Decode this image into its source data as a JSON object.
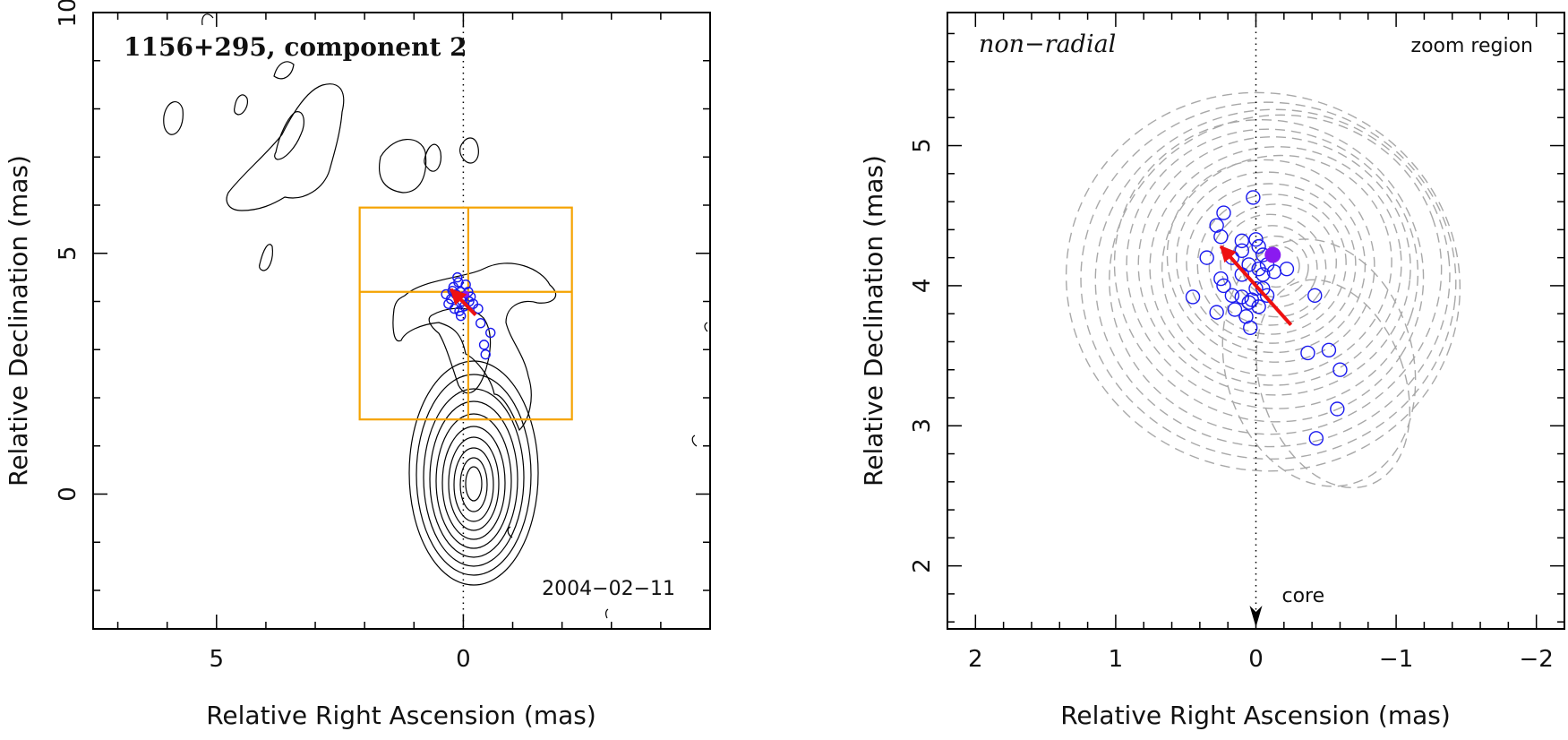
{
  "chart_data": [
    {
      "type": "scatter",
      "panel": "left",
      "title": "1156+295, component 2",
      "date": "2004−02−11",
      "xlabel": "Relative Right Ascension (mas)",
      "ylabel": "Relative Declination (mas)",
      "xlim": [
        7.5,
        -5.0
      ],
      "ylim": [
        -2.8,
        10.0
      ],
      "xticks": [
        5,
        0
      ],
      "xtick_labels": [
        "5",
        "0"
      ],
      "yticks": [
        0,
        5,
        10
      ],
      "ytick_labels": [
        "0",
        "5",
        "10"
      ],
      "zoom_box": {
        "ra": [
          2.1,
          -2.2
        ],
        "dec": [
          1.55,
          5.95
        ]
      },
      "crosshair": {
        "ra": -0.1,
        "dec": 4.2
      },
      "component_points": [
        [
          0.25,
          4.05
        ],
        [
          0.2,
          4.3
        ],
        [
          0.15,
          4.15
        ],
        [
          0.1,
          4.4
        ],
        [
          0.05,
          4.2
        ],
        [
          0.0,
          4.1
        ],
        [
          -0.05,
          4.35
        ],
        [
          -0.1,
          4.2
        ],
        [
          0.3,
          3.95
        ],
        [
          0.18,
          3.85
        ],
        [
          0.08,
          3.8
        ],
        [
          -0.02,
          3.9
        ],
        [
          -0.12,
          4.0
        ],
        [
          -0.2,
          3.95
        ],
        [
          0.12,
          4.5
        ],
        [
          0.02,
          4.0
        ],
        [
          0.22,
          4.22
        ],
        [
          -0.15,
          4.1
        ],
        [
          0.35,
          4.15
        ],
        [
          0.05,
          3.7
        ],
        [
          -0.3,
          3.85
        ],
        [
          -0.35,
          3.55
        ],
        [
          -0.55,
          3.35
        ],
        [
          -0.42,
          3.1
        ],
        [
          -0.45,
          2.9
        ]
      ],
      "motion_arrow": {
        "from_ra": -0.25,
        "from_dec": 3.72,
        "to_ra": 0.25,
        "to_dec": 4.25
      }
    },
    {
      "type": "scatter",
      "panel": "right",
      "label": "non−radial",
      "region_label": "zoom region",
      "core_label": "core",
      "xlabel": "Relative Right Ascension (mas)",
      "ylabel": "Relative Declination (mas)",
      "xlim": [
        2.2,
        -2.2
      ],
      "ylim": [
        1.55,
        5.95
      ],
      "xticks": [
        2,
        1,
        0,
        -1,
        -2
      ],
      "xtick_labels": [
        "2",
        "1",
        "0",
        "−1",
        "−2"
      ],
      "yticks": [
        2,
        3,
        4,
        5
      ],
      "ytick_labels": [
        "2",
        "3",
        "4",
        "5"
      ],
      "component_points": [
        [
          0.02,
          4.63
        ],
        [
          0.28,
          4.43
        ],
        [
          0.23,
          4.52
        ],
        [
          0.1,
          4.32
        ],
        [
          0.25,
          4.35
        ],
        [
          0.0,
          4.33
        ],
        [
          -0.02,
          4.28
        ],
        [
          0.17,
          4.2
        ],
        [
          0.35,
          4.2
        ],
        [
          0.1,
          4.25
        ],
        [
          -0.05,
          4.22
        ],
        [
          0.05,
          4.15
        ],
        [
          -0.02,
          4.12
        ],
        [
          -0.08,
          4.15
        ],
        [
          0.25,
          4.05
        ],
        [
          0.1,
          4.08
        ],
        [
          -0.05,
          4.08
        ],
        [
          -0.13,
          4.1
        ],
        [
          -0.22,
          4.12
        ],
        [
          0.23,
          4.0
        ],
        [
          0.0,
          3.98
        ],
        [
          -0.05,
          3.98
        ],
        [
          0.45,
          3.92
        ],
        [
          0.17,
          3.93
        ],
        [
          0.1,
          3.92
        ],
        [
          0.03,
          3.9
        ],
        [
          -0.08,
          3.93
        ],
        [
          0.05,
          3.88
        ],
        [
          -0.02,
          3.85
        ],
        [
          0.28,
          3.81
        ],
        [
          0.15,
          3.83
        ],
        [
          0.07,
          3.78
        ],
        [
          0.04,
          3.7
        ],
        [
          -0.42,
          3.93
        ],
        [
          -0.37,
          3.52
        ],
        [
          -0.52,
          3.54
        ],
        [
          -0.6,
          3.4
        ],
        [
          -0.58,
          3.12
        ],
        [
          -0.43,
          2.91
        ]
      ],
      "mean_position": {
        "ra": -0.12,
        "dec": 4.22
      },
      "motion_arrow": {
        "from_ra": -0.25,
        "from_dec": 3.72,
        "to_ra": 0.25,
        "to_dec": 4.28
      }
    }
  ],
  "colors": {
    "box": "#f5a300",
    "points": "#1a1aee",
    "arrow": "#ee1111",
    "mean": "#8a1af0",
    "dashed": "#a8a8a8"
  }
}
